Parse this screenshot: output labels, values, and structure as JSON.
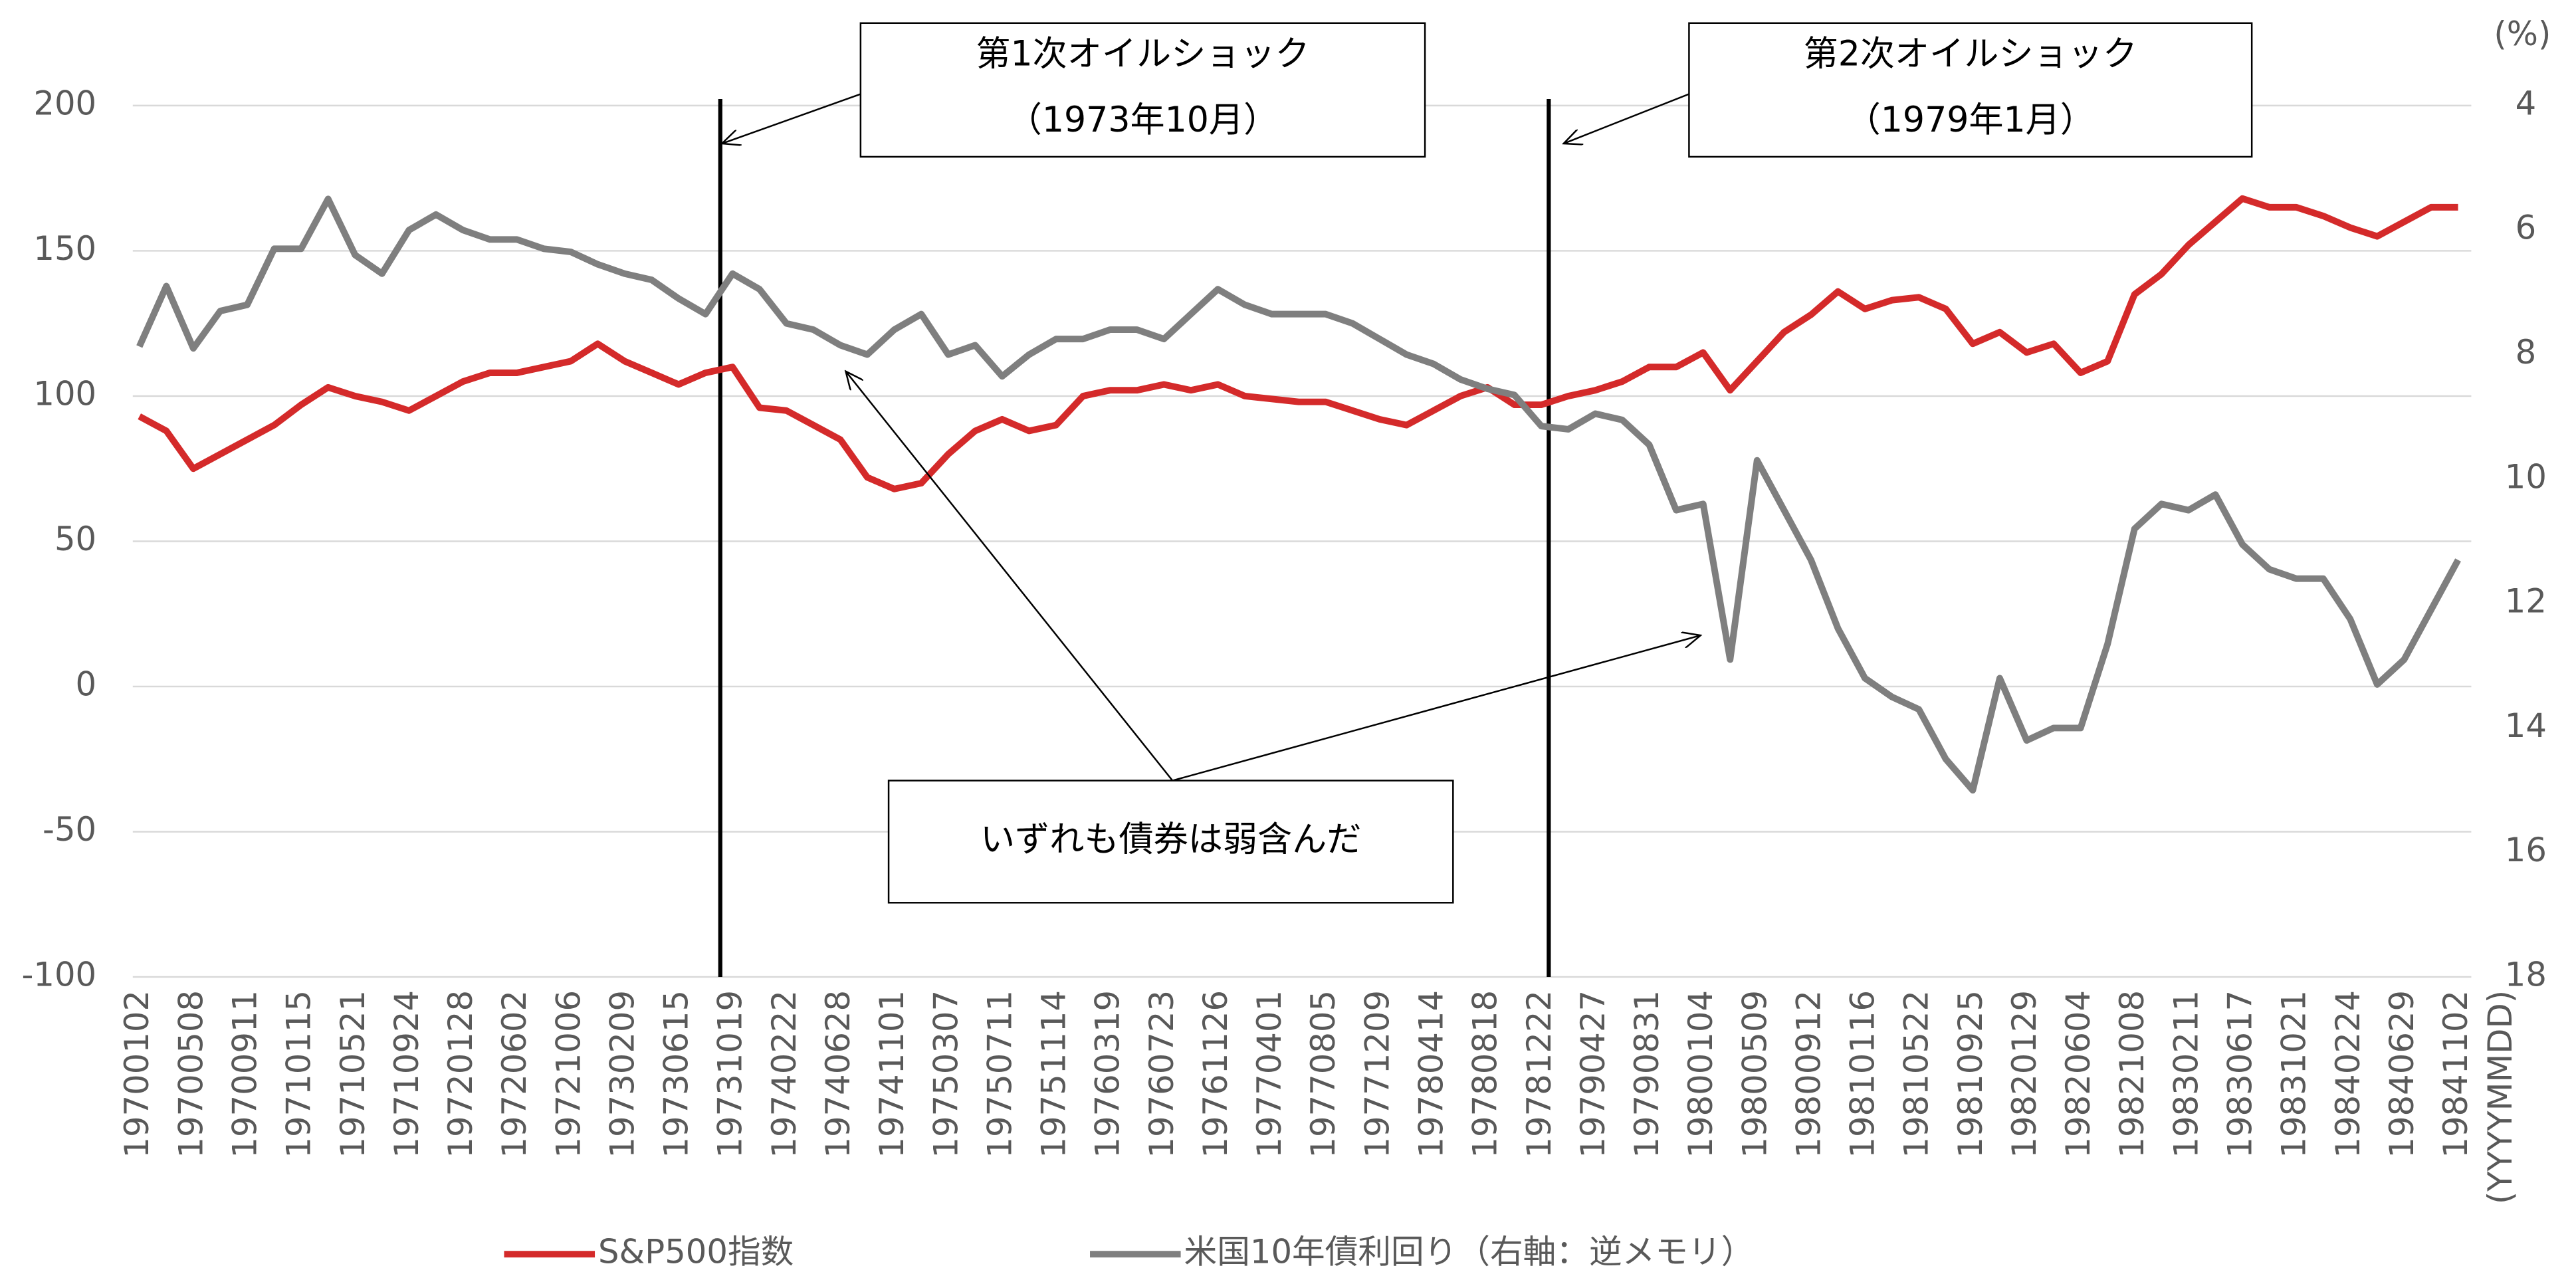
{
  "chart_data": {
    "type": "line",
    "categories": [
      "19700102",
      null,
      "19700508",
      null,
      "19700911",
      null,
      "19710115",
      null,
      "19710521",
      null,
      "19710924",
      null,
      "19720128",
      null,
      "19720602",
      null,
      "19721006",
      null,
      "19730209",
      null,
      "19730615",
      null,
      "19731019",
      null,
      "19740222",
      null,
      "19740628",
      null,
      "19741101",
      null,
      "19750307",
      null,
      "19750711",
      null,
      "19751114",
      null,
      "19760319",
      null,
      "19760723",
      null,
      "19761126",
      null,
      "19770401",
      null,
      "19770805",
      null,
      "19771209",
      null,
      "19780414",
      null,
      "19780818",
      null,
      "19781222",
      null,
      "19790427",
      null,
      "19790831",
      null,
      "19800104",
      null,
      "19800509",
      null,
      "19800912",
      null,
      "19810116",
      null,
      "19810522",
      null,
      "19810925",
      null,
      "19820129",
      null,
      "19820604",
      null,
      "19821008",
      null,
      "19830211",
      null,
      "19830617",
      null,
      "19831021",
      null,
      "19840224",
      null,
      "19840629",
      null,
      "19841102"
    ],
    "series": [
      {
        "name": "S&P500指数",
        "color": "#d42a2a",
        "axis": "y",
        "values": [
          93,
          88,
          75,
          80,
          85,
          90,
          97,
          103,
          100,
          98,
          95,
          100,
          105,
          108,
          108,
          110,
          112,
          118,
          112,
          108,
          104,
          108,
          110,
          96,
          95,
          90,
          85,
          72,
          68,
          70,
          80,
          88,
          92,
          88,
          90,
          100,
          102,
          102,
          104,
          102,
          104,
          100,
          99,
          98,
          98,
          95,
          92,
          90,
          95,
          100,
          103,
          97,
          97,
          100,
          102,
          105,
          110,
          110,
          115,
          102,
          112,
          122,
          128,
          136,
          130,
          133,
          134,
          130,
          118,
          122,
          115,
          118,
          108,
          112,
          135,
          142,
          152,
          160,
          168,
          165,
          165,
          162,
          158,
          155,
          160,
          165,
          165
        ]
      },
      {
        "name": "米国10年債利回り（右軸：逆メモリ）",
        "color": "#7f7f7f",
        "axis": "y2",
        "values": [
          7.87,
          6.9,
          7.9,
          7.3,
          7.2,
          6.3,
          6.3,
          5.5,
          6.4,
          6.7,
          6.0,
          5.75,
          6.0,
          6.15,
          6.15,
          6.3,
          6.35,
          6.55,
          6.7,
          6.8,
          7.1,
          7.35,
          6.7,
          6.95,
          7.5,
          7.6,
          7.85,
          8.0,
          7.6,
          7.35,
          8.0,
          7.85,
          8.35,
          8.0,
          7.75,
          7.75,
          7.6,
          7.6,
          7.75,
          7.35,
          6.95,
          7.2,
          7.35,
          7.35,
          7.35,
          7.5,
          7.75,
          8.0,
          8.15,
          8.4,
          8.55,
          8.65,
          9.15,
          9.2,
          8.95,
          9.05,
          9.45,
          10.5,
          10.4,
          12.9,
          9.7,
          10.5,
          11.3,
          12.4,
          13.2,
          13.5,
          13.7,
          14.5,
          15.0,
          13.2,
          14.2,
          14.0,
          14.0,
          12.65,
          10.8,
          10.4,
          10.5,
          10.25,
          11.05,
          11.45,
          11.6,
          11.6,
          12.25,
          13.3,
          12.9,
          12.1,
          11.3
        ]
      }
    ],
    "ylim": [
      -100,
      200
    ],
    "yticks": [
      -100,
      -50,
      0,
      50,
      100,
      150,
      200
    ],
    "y2lim": [
      18,
      4
    ],
    "y2ticks": [
      4,
      6,
      8,
      10,
      12,
      14,
      16,
      18
    ],
    "y2_label": "(%)",
    "x_label": "(YYYYMMDD)",
    "grid": true,
    "legend": "bottom",
    "annotations": [
      {
        "lines": [
          "第1次オイルショック",
          "（1973年10月）"
        ]
      },
      {
        "lines": [
          "第2次オイルショック",
          "（1979年1月）"
        ]
      },
      {
        "lines": [
          "いずれも債券は弱含んだ"
        ]
      }
    ]
  }
}
